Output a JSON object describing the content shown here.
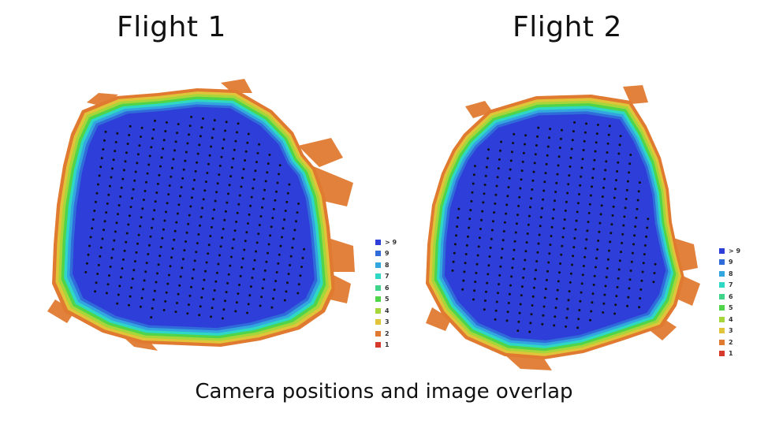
{
  "flights": [
    {
      "title": "Flight 1"
    },
    {
      "title": "Flight 2"
    }
  ],
  "caption": "Camera positions and image overlap",
  "legend": [
    {
      "label": "> 9",
      "color": "#2e3fd9"
    },
    {
      "label": "9",
      "color": "#2f6cd9"
    },
    {
      "label": "8",
      "color": "#33a6e0"
    },
    {
      "label": "7",
      "color": "#2fd8c4"
    },
    {
      "label": "6",
      "color": "#3fd48a"
    },
    {
      "label": "5",
      "color": "#4fd44a"
    },
    {
      "label": "4",
      "color": "#a6d63a"
    },
    {
      "label": "3",
      "color": "#e0c43a"
    },
    {
      "label": "2",
      "color": "#e07a30"
    },
    {
      "label": "1",
      "color": "#d63a2a"
    }
  ]
}
